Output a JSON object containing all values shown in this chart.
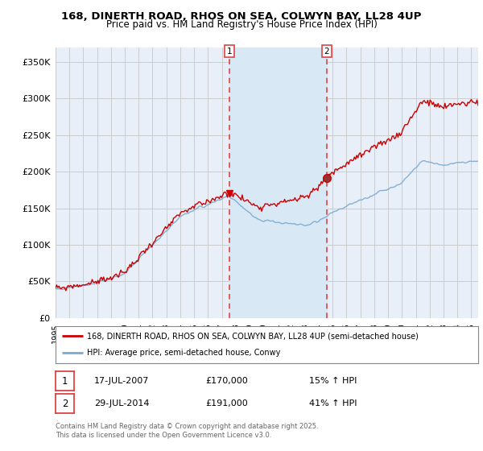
{
  "title_line1": "168, DINERTH ROAD, RHOS ON SEA, COLWYN BAY, LL28 4UP",
  "title_line2": "Price paid vs. HM Land Registry's House Price Index (HPI)",
  "background_color": "#ffffff",
  "plot_bg_color": "#e8eff8",
  "grid_color": "#cccccc",
  "sale1_date": 2007.54,
  "sale1_price": 170000,
  "sale2_date": 2014.57,
  "sale2_price": 191000,
  "vline_color": "#dd4444",
  "vline_shade_color": "#d8e8f5",
  "legend_entry1": "168, DINERTH ROAD, RHOS ON SEA, COLWYN BAY, LL28 4UP (semi-detached house)",
  "legend_entry2": "HPI: Average price, semi-detached house, Conwy",
  "table_row1": [
    "1",
    "17-JUL-2007",
    "£170,000",
    "15% ↑ HPI"
  ],
  "table_row2": [
    "2",
    "29-JUL-2014",
    "£191,000",
    "41% ↑ HPI"
  ],
  "footer": "Contains HM Land Registry data © Crown copyright and database right 2025.\nThis data is licensed under the Open Government Licence v3.0.",
  "house_line_color": "#cc0000",
  "hpi_line_color": "#7aaad0",
  "ylim": [
    0,
    370000
  ],
  "yticks": [
    0,
    50000,
    100000,
    150000,
    200000,
    250000,
    300000,
    350000
  ],
  "xmin": 1995,
  "xmax": 2025.5,
  "fig_width": 6.0,
  "fig_height": 5.6,
  "dpi": 100
}
